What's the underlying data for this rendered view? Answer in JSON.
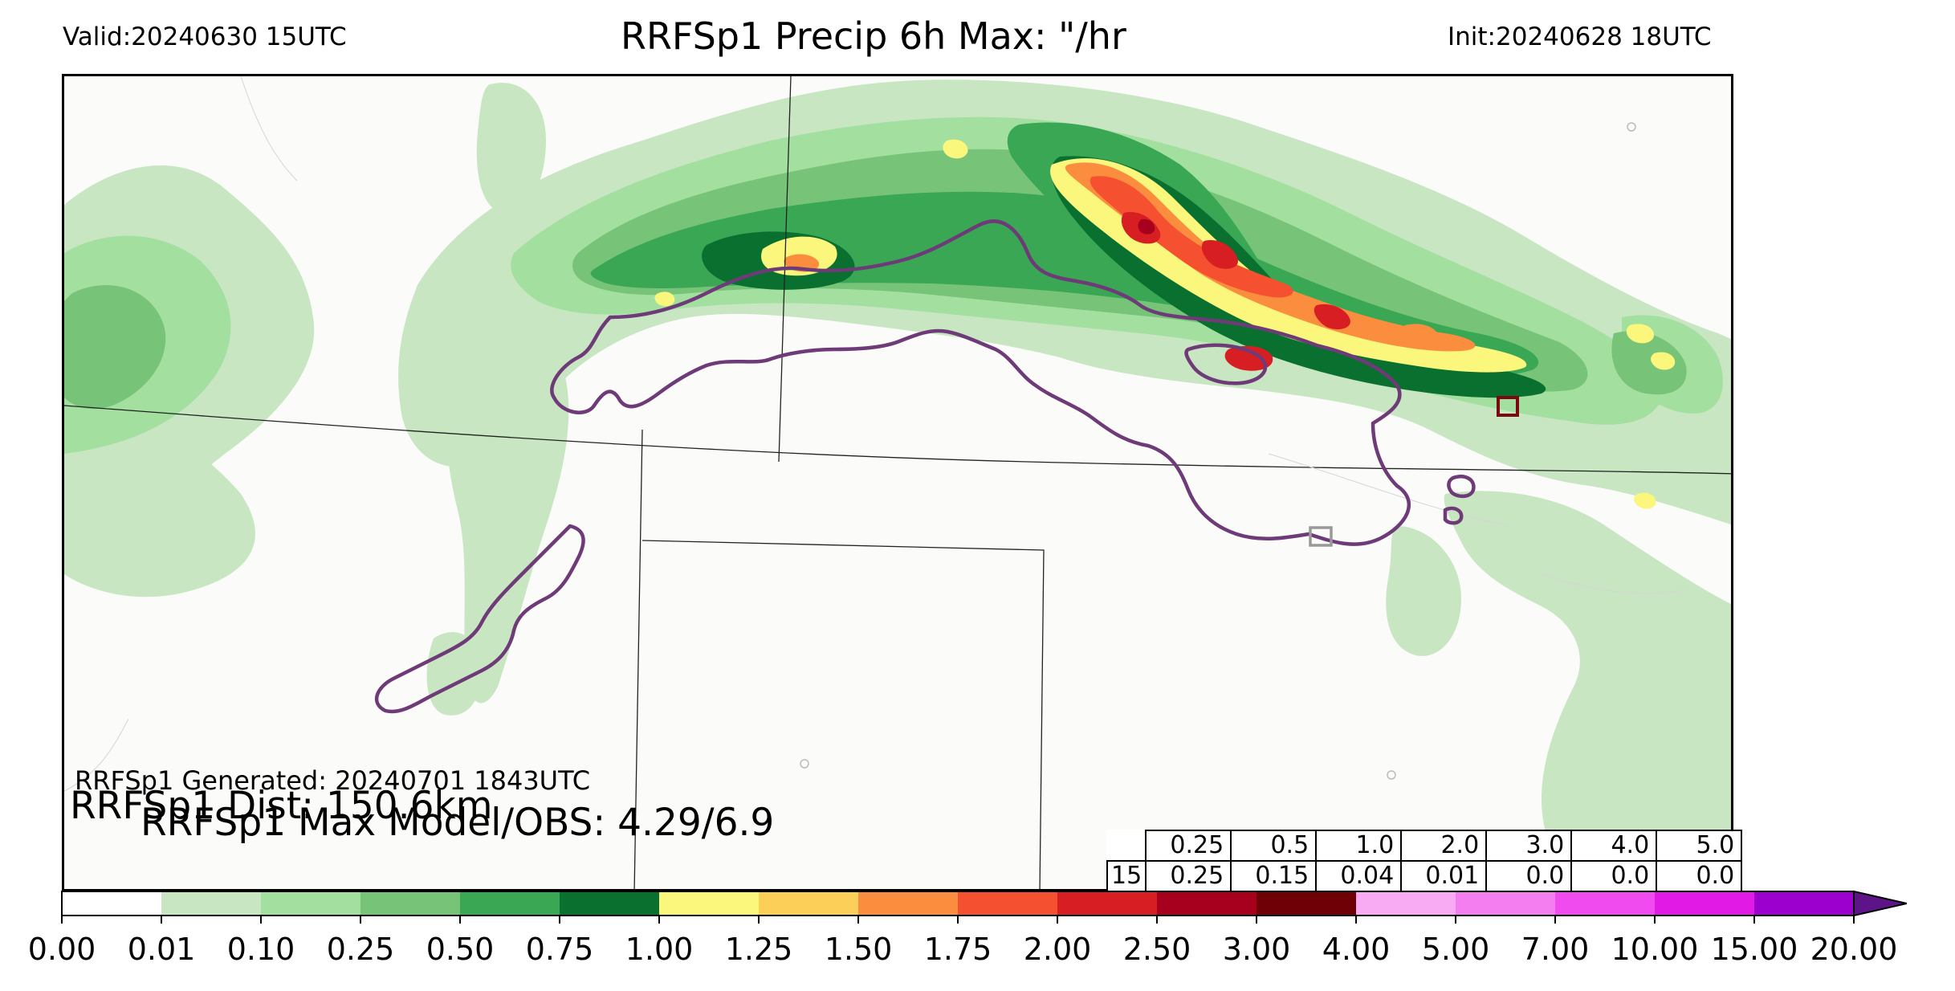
{
  "header": {
    "valid": "Valid:20240630 15UTC",
    "title": "RRFSp1 Precip 6h Max: \"/hr",
    "init": "Init:20240628 18UTC"
  },
  "annotations": {
    "max_model_obs": "RRFSp1 Max Model/OBS: 4.29/6.9",
    "generated": "RRFSp1 Generated: 20240701 1843UTC",
    "distance": "RRFSp1 Dist: 150.6km"
  },
  "stats_table": {
    "thresholds": [
      "0.25",
      "0.5",
      "1.0",
      "2.0",
      "3.0",
      "4.0",
      "5.0"
    ],
    "row_label": "15",
    "values": [
      "0.25",
      "0.15",
      "0.04",
      "0.01",
      "0.0",
      "0.0",
      "0.0"
    ]
  },
  "colorbar": {
    "ticks": [
      "0.00",
      "0.01",
      "0.10",
      "0.25",
      "0.50",
      "0.75",
      "1.00",
      "1.25",
      "1.50",
      "1.75",
      "2.00",
      "2.50",
      "3.00",
      "4.00",
      "5.00",
      "7.00",
      "10.00",
      "15.00",
      "20.00"
    ],
    "colors": [
      "#ffffff",
      "#c7e6c1",
      "#a3e0a0",
      "#77c478",
      "#3aa755",
      "#0a7030",
      "#fbf67c",
      "#fbcf58",
      "#fb8e3e",
      "#f55030",
      "#d71e22",
      "#a6001e",
      "#6f0006",
      "#f8aaf2",
      "#f47ef0",
      "#ef4bef",
      "#e21ae6",
      "#9b00cf"
    ],
    "extend_color": "#5d1488"
  },
  "map": {
    "land_color": "#fbfbfa",
    "border_color": "#222222",
    "contour_color": "#6e3a78",
    "obs_box_color": "#999999",
    "max_box_color": "#7a0a10"
  }
}
